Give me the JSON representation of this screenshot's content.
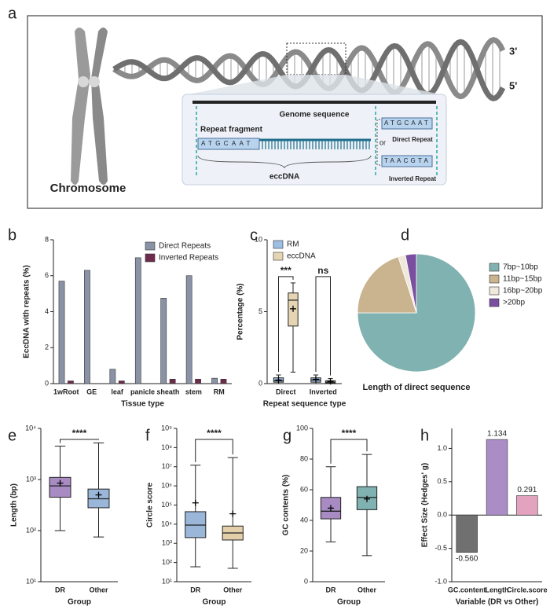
{
  "diagram": {
    "panel": "a",
    "end_top": "3'",
    "end_bottom": "5'",
    "genome": "Genome sequence",
    "fragment": "Repeat fragment",
    "eccdna": "eccDNA",
    "or": "or",
    "direct": "Direct Repeat",
    "inverted": "Inverted Repeat",
    "chromosome": "Chromosome",
    "sequences": [
      "ATGCAAT",
      "ATGCAAT",
      "TAACGTA"
    ]
  },
  "chart_data": [
    {
      "type": "bar",
      "panel": "b",
      "ylabel": "EccDNA with repeats (%)",
      "xlabel": "Tissue type",
      "categories": [
        "1wRoot",
        "GE",
        "leaf",
        "panicle",
        "sheath",
        "stem",
        "RM"
      ],
      "series": [
        {
          "name": "Direct Repeats",
          "color": "#8a93a5",
          "values": [
            5.7,
            6.3,
            0.8,
            7.0,
            4.75,
            6.0,
            0.3
          ]
        },
        {
          "name": "Inverted Repeats",
          "color": "#6e2b4b",
          "values": [
            0.15,
            0,
            0.15,
            0,
            0.25,
            0.25,
            0.25
          ]
        }
      ],
      "ylim": [
        0,
        8
      ],
      "yticks": [
        0,
        2,
        4,
        6,
        8
      ],
      "legend": "upper right"
    },
    {
      "type": "box",
      "panel": "c",
      "ylabel": "Percentage (%)",
      "xlabel": "Repeat sequence type",
      "categories": [
        "Direct",
        "Inverted"
      ],
      "series": [
        {
          "name": "RM",
          "color": "#9dbfe3",
          "boxes": [
            {
              "min": 0,
              "q1": 0.1,
              "median": 0.2,
              "q3": 0.4,
              "max": 0.6,
              "mean": 0.25
            },
            {
              "min": 0,
              "q1": 0.1,
              "median": 0.25,
              "q3": 0.4,
              "max": 0.6,
              "mean": 0.3
            }
          ]
        },
        {
          "name": "eccDNA",
          "color": "#e6d5b3",
          "boxes": [
            {
              "min": 0.8,
              "q1": 4.0,
              "median": 5.8,
              "q3": 6.3,
              "max": 7.0,
              "mean": 5.2
            },
            {
              "min": 0,
              "q1": 0.05,
              "median": 0.1,
              "q3": 0.2,
              "max": 0.35,
              "mean": 0.15
            }
          ]
        }
      ],
      "ylim": [
        0,
        10
      ],
      "yticks": [
        0,
        5,
        10
      ],
      "annotations": [
        "***",
        "ns"
      ],
      "legend": "upper left"
    },
    {
      "type": "pie",
      "panel": "d",
      "title": "Length of direct sequence",
      "categories": [
        "7bp~10bp",
        "11bp~15bp",
        "16bp~20bp",
        ">20bp"
      ],
      "values": [
        75,
        20,
        2,
        3
      ],
      "colors": [
        "#7fb2b0",
        "#c9b48f",
        "#efe9dc",
        "#7b4fa0"
      ],
      "legend": "right"
    },
    {
      "type": "box",
      "panel": "e",
      "ylabel": "Length (bp)",
      "xlabel": "Group",
      "categories": [
        "DR",
        "Other"
      ],
      "log": true,
      "boxes": [
        {
          "min": 100,
          "q1": 450,
          "median": 750,
          "q3": 1100,
          "max": 4500,
          "mean": 850
        },
        {
          "min": 75,
          "q1": 280,
          "median": 420,
          "q3": 650,
          "max": 5200,
          "mean": 500
        }
      ],
      "colors": [
        "#a98bc4",
        "#9ab6d8"
      ],
      "ylim": [
        10,
        10000
      ],
      "yticks": [
        {
          "value": 10,
          "label": "10¹"
        },
        {
          "value": 100,
          "label": "10²"
        },
        {
          "value": 1000,
          "label": "10³"
        },
        {
          "value": 10000,
          "label": "10⁴"
        }
      ],
      "annotations": [
        "****"
      ]
    },
    {
      "type": "box",
      "panel": "f",
      "ylabel": "Circle score",
      "xlabel": "Group",
      "categories": [
        "DR",
        "Other"
      ],
      "log": true,
      "boxes": [
        {
          "min": 60,
          "q1": 2000,
          "median": 9000,
          "q3": 45000,
          "max": 12000000,
          "mean": 130000
        },
        {
          "min": 50,
          "q1": 1500,
          "median": 3500,
          "q3": 8000,
          "max": 30000000,
          "mean": 35000
        }
      ],
      "colors": [
        "#9ab6d8",
        "#e3cfa9"
      ],
      "ylim": [
        10,
        1000000000
      ],
      "yticks": [
        {
          "value": 10,
          "label": "10¹"
        },
        {
          "value": 100,
          "label": "10²"
        },
        {
          "value": 1000,
          "label": "10³"
        },
        {
          "value": 10000,
          "label": "10⁴"
        },
        {
          "value": 100000,
          "label": "10⁵"
        },
        {
          "value": 1000000,
          "label": "10⁶"
        },
        {
          "value": 10000000,
          "label": "10⁷"
        },
        {
          "value": 100000000,
          "label": "10⁸"
        },
        {
          "value": 1000000000,
          "label": "10⁹"
        }
      ],
      "annotations": [
        "****"
      ]
    },
    {
      "type": "box",
      "panel": "g",
      "ylabel": "GC contents (%)",
      "xlabel": "Group",
      "categories": [
        "DR",
        "Other"
      ],
      "boxes": [
        {
          "min": 26,
          "q1": 41,
          "median": 46,
          "q3": 55,
          "max": 75,
          "mean": 48
        },
        {
          "min": 17,
          "q1": 47,
          "median": 55,
          "q3": 62,
          "max": 83,
          "mean": 54
        }
      ],
      "colors": [
        "#a98bc4",
        "#7fb2b0"
      ],
      "ylim": [
        0,
        100
      ],
      "yticks": [
        0,
        20,
        40,
        60,
        80,
        100
      ],
      "annotations": [
        "****"
      ]
    },
    {
      "type": "bar",
      "panel": "h",
      "ylabel": "Effect Size (Hedges' g)",
      "xlabel": "Variable (DR vs Other)",
      "categories": [
        "GC.content",
        "Length",
        "Circle.score"
      ],
      "values": [
        -0.56,
        1.134,
        0.291
      ],
      "value_labels": [
        "-0.560",
        "1.134",
        "0.291"
      ],
      "colors": [
        "#707070",
        "#ab8dc6",
        "#e3a3bf"
      ],
      "ylim": [
        -1.0,
        1.3
      ],
      "yticks": [
        {
          "value": -1,
          "label": "-1.0"
        },
        {
          "value": -0.5,
          "label": "-0.5"
        },
        {
          "value": 0,
          "label": "0.0"
        },
        {
          "value": 0.5,
          "label": "0.5"
        },
        {
          "value": 1,
          "label": "1.0"
        }
      ]
    }
  ]
}
